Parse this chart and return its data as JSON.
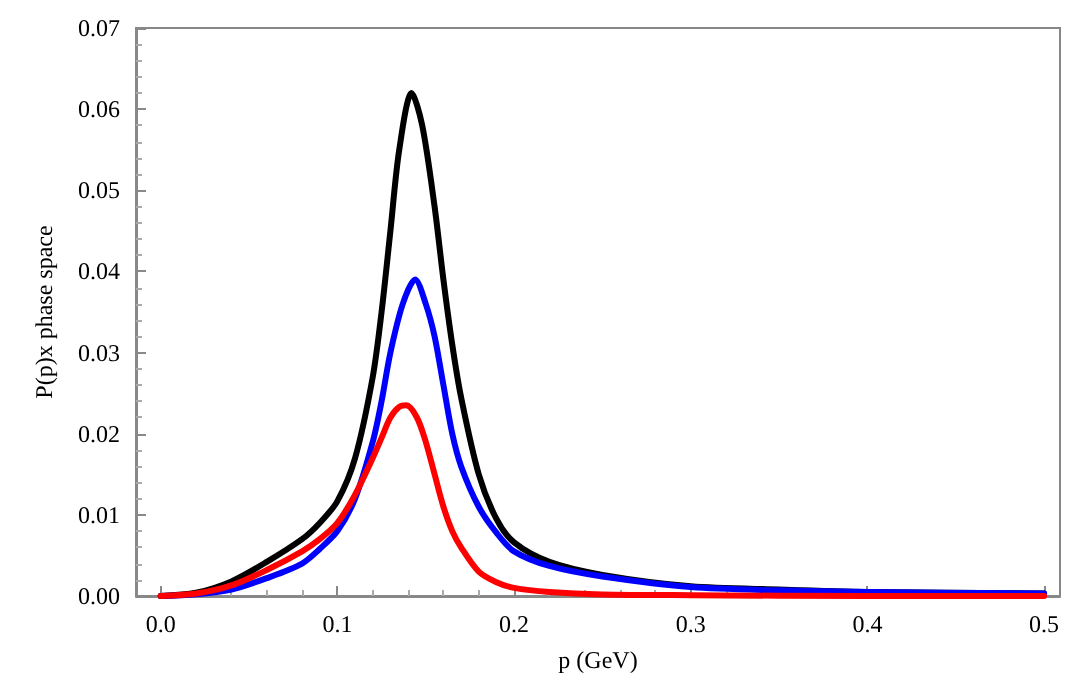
{
  "chart_data": {
    "type": "line",
    "xlabel": "p (GeV)",
    "ylabel": "P(p)x phase space",
    "x": [
      0,
      0.02,
      0.04,
      0.06,
      0.08,
      0.09,
      0.1,
      0.11,
      0.12,
      0.125,
      0.13,
      0.135,
      0.142,
      0.148,
      0.155,
      0.16,
      0.165,
      0.17,
      0.18,
      0.19,
      0.2,
      0.22,
      0.25,
      0.3,
      0.35,
      0.4,
      0.5
    ],
    "series": [
      {
        "color": "#000000",
        "values": [
          0,
          0.0004,
          0.0018,
          0.0042,
          0.007,
          0.009,
          0.0117,
          0.017,
          0.027,
          0.035,
          0.045,
          0.055,
          0.062,
          0.058,
          0.048,
          0.039,
          0.031,
          0.0245,
          0.015,
          0.0095,
          0.0066,
          0.0042,
          0.0026,
          0.0012,
          0.0008,
          0.0005,
          0.0003
        ]
      },
      {
        "color": "#0000ff",
        "x": [
          0,
          0.02,
          0.04,
          0.06,
          0.08,
          0.09,
          0.1,
          0.11,
          0.12,
          0.125,
          0.13,
          0.137,
          0.144,
          0.15,
          0.155,
          0.16,
          0.165,
          0.17,
          0.18,
          0.19,
          0.2,
          0.22,
          0.25,
          0.3,
          0.35,
          0.4,
          0.5
        ],
        "values": [
          0,
          0.0002,
          0.0008,
          0.0022,
          0.004,
          0.0058,
          0.008,
          0.012,
          0.019,
          0.024,
          0.03,
          0.036,
          0.039,
          0.036,
          0.032,
          0.026,
          0.02,
          0.016,
          0.011,
          0.0078,
          0.0055,
          0.0037,
          0.0024,
          0.0011,
          0.0007,
          0.0005,
          0.0003
        ]
      },
      {
        "color": "#ff0000",
        "x": [
          0,
          0.02,
          0.04,
          0.06,
          0.08,
          0.09,
          0.1,
          0.11,
          0.12,
          0.125,
          0.13,
          0.135,
          0.139,
          0.145,
          0.15,
          0.155,
          0.16,
          0.165,
          0.17,
          0.18,
          0.19,
          0.2,
          0.22,
          0.25,
          0.3,
          0.4,
          0.5
        ],
        "values": [
          0,
          0.0003,
          0.0013,
          0.0032,
          0.0055,
          0.007,
          0.009,
          0.0125,
          0.017,
          0.0195,
          0.022,
          0.0233,
          0.0235,
          0.022,
          0.019,
          0.015,
          0.011,
          0.008,
          0.006,
          0.003,
          0.0017,
          0.001,
          0.0005,
          0.0002,
          0.0001,
          0,
          0
        ]
      }
    ],
    "xlim": [
      -0.014,
      0.509
    ],
    "xticks": [
      {
        "value": 0,
        "label": "0.0"
      },
      0.1,
      0.2,
      0.3,
      0.4,
      0.5
    ],
    "ylim": [
      0,
      0.07
    ],
    "yticks": [
      {
        "value": 0,
        "label": "0.00"
      },
      0.01,
      0.02,
      0.03,
      0.04,
      0.05,
      0.06,
      0.07
    ],
    "grid": false,
    "marker": "none",
    "line_style": "solid"
  }
}
